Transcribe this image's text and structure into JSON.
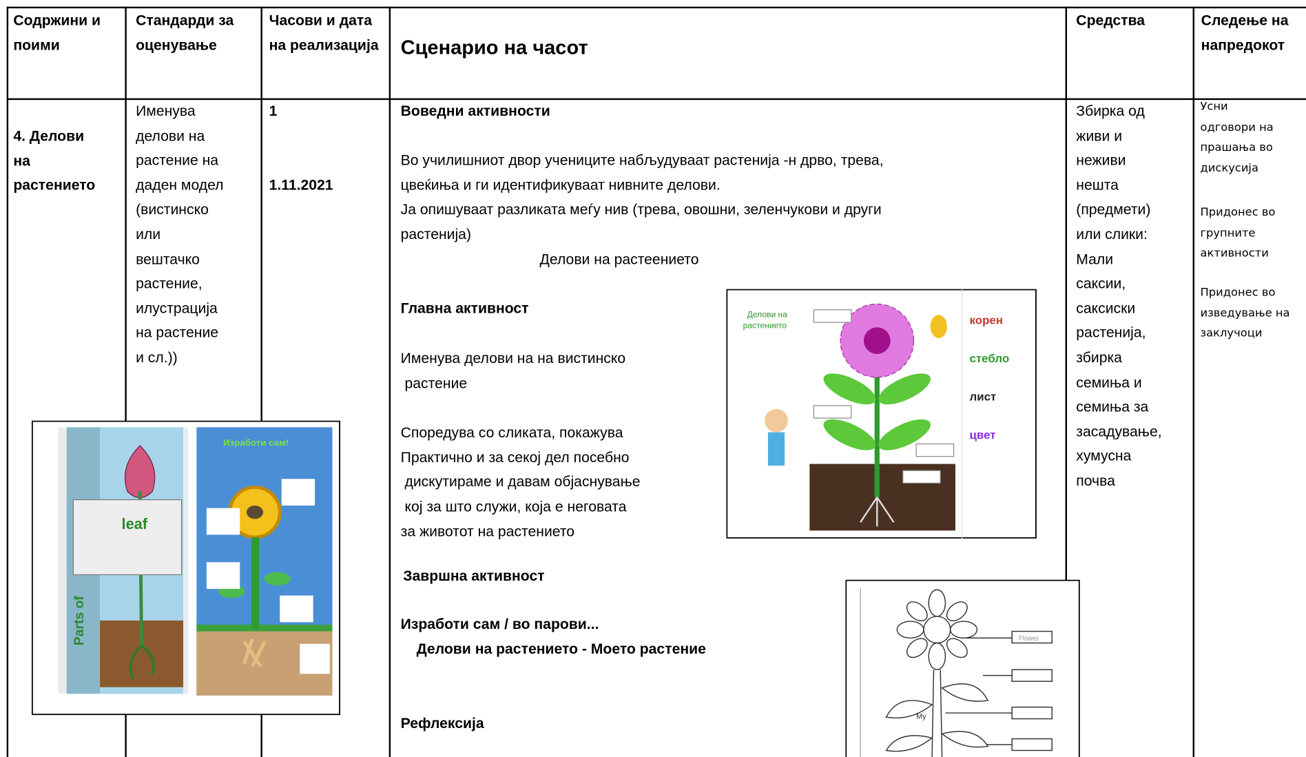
{
  "header": {
    "columns": [
      "Содржини и поими",
      "Стандарди за оценување",
      "Часови и дата на реализација",
      "Сценарио на часот",
      "Средства",
      "Следење на напредокот"
    ]
  },
  "row": {
    "content": [
      "4. Делови",
      "на",
      "растението"
    ],
    "standard": [
      "Именува",
      "делови на",
      "растение на",
      "даден модел",
      "(вистинско",
      "или",
      "вештачко",
      "растение,",
      "илустрација",
      "на растение",
      "и сл.))"
    ],
    "hours": "1",
    "date": "1.11.2021",
    "scenario": {
      "intro_title": "Воведни активности",
      "intro": [
        "Во училишниот двор учениците набљудуваат растенија -н дрво, трева,",
        "цвеќиња и ги идентификуваат нивните делови.",
        "Ја опишуваат разликата меѓу нив (трева, овошни, зеленчукови и други",
        "растенија)"
      ],
      "caption": "Делови на растеението",
      "main_title": "Главна активност",
      "main_1": [
        "Именува делови на на вистинско",
        " растение"
      ],
      "main_2": [
        "Споредува со сликата, покажува",
        "Практично и за секој дел посебно",
        " дискутираме и давам објаснување",
        " кој за што служи, која е неговата",
        "за животот на растението"
      ],
      "closing_title": "Завршна активност",
      "make_title": "Изработи сам / во парови...",
      "make_sub": "Делови на растението - Моето растение",
      "reflection": "Рефлексија"
    },
    "resources": [
      "Збирка од",
      "живи и",
      "неживи",
      "нешта",
      "(предмети)",
      "или слики:",
      "Мали",
      "саксии,",
      "саксиски",
      "растенија,",
      "збирка",
      "семиња и",
      "семиња за",
      "засадување,",
      "хумусна",
      "почва"
    ],
    "tracking": [
      [
        "Усни",
        "одговори на",
        "прашања во",
        "дискусија"
      ],
      [
        "Придонес во",
        "групните",
        "активности"
      ],
      [
        "Придонес во",
        "изведување на",
        "заклучоци"
      ]
    ]
  },
  "images": {
    "craft": {
      "leaf": "leaf",
      "side": "Parts of",
      "title": "Изработи сам!"
    },
    "diagram": {
      "title": [
        "Делови на",
        "растението"
      ],
      "labels": [
        "корен",
        "стебло",
        "лист",
        "цвет"
      ]
    },
    "outline": {
      "flower": "Flower",
      "my": "My"
    }
  }
}
